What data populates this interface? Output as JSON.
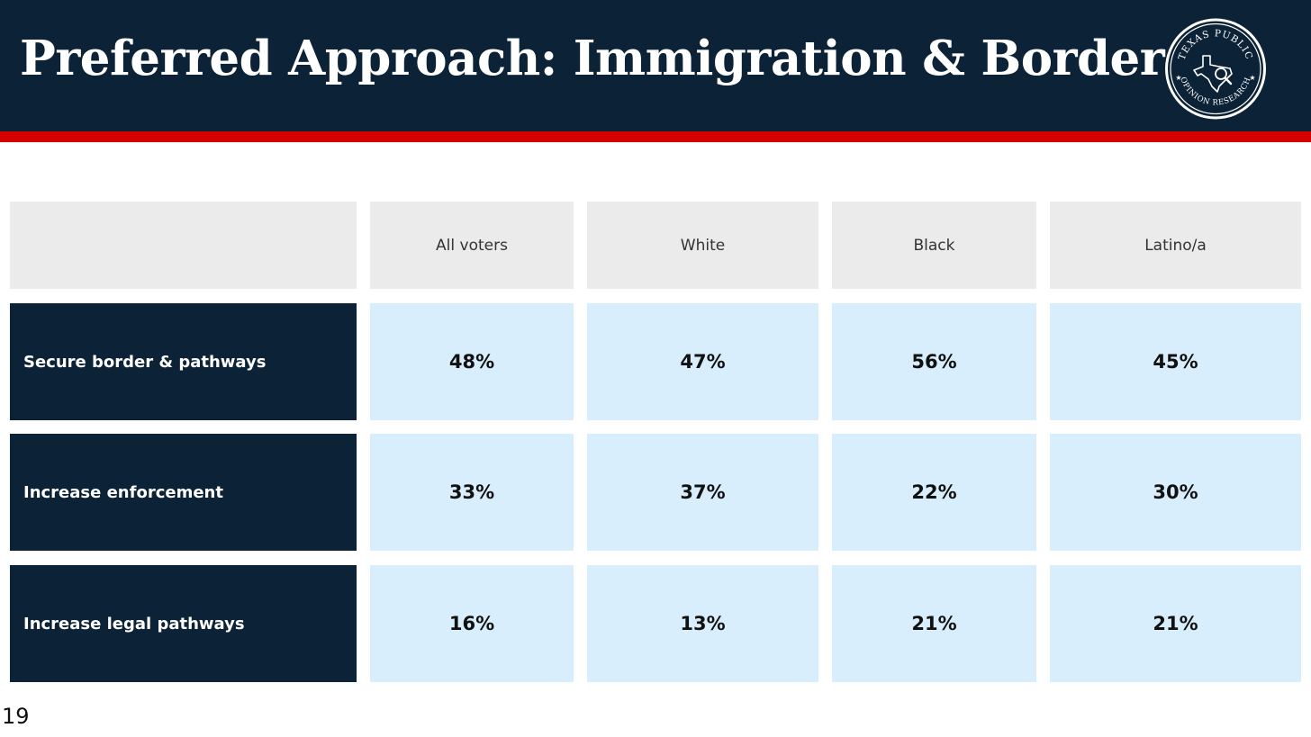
{
  "title": "Preferred Approach: Immigration & Border",
  "logo": {
    "top_text": "TEXAS PUBLIC",
    "bottom_text": "OPINION RESEARCH",
    "icon": "texas-magnifier-icon"
  },
  "colors": {
    "header_bg": "#0c2237",
    "accent_red": "#d40000",
    "header_cell": "#ebebeb",
    "value_cell": "#d9eefd"
  },
  "chart_data": {
    "type": "table",
    "columns": [
      "All voters",
      "White",
      "Black",
      "Latino/a"
    ],
    "rows": [
      {
        "label": "Secure border & pathways",
        "values": [
          "48%",
          "47%",
          "56%",
          "45%"
        ]
      },
      {
        "label": "Increase enforcement",
        "values": [
          "33%",
          "37%",
          "22%",
          "30%"
        ]
      },
      {
        "label": "Increase legal pathways",
        "values": [
          "16%",
          "13%",
          "21%",
          "21%"
        ]
      }
    ]
  },
  "page_number": "19"
}
